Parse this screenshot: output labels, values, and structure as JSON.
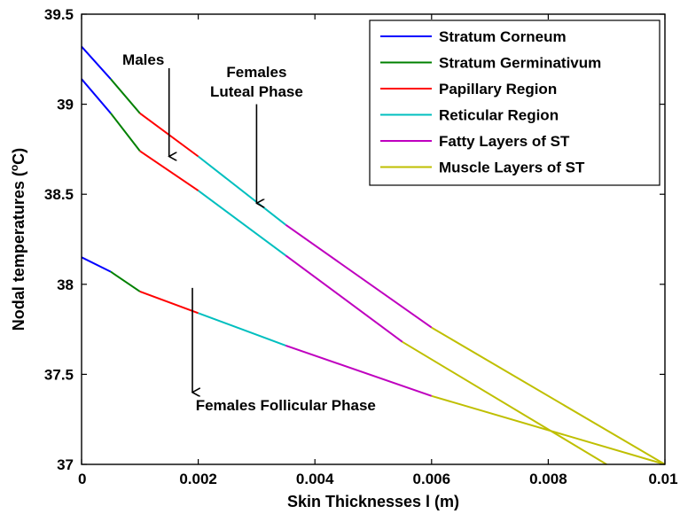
{
  "chart_data": {
    "type": "line",
    "title": "",
    "xlabel": "Skin Thicknesses l (m)",
    "ylabel_prefix": "Nodal temperatures (",
    "ylabel_sup": "o",
    "ylabel_suffix": "C)",
    "xlim": [
      0,
      0.01
    ],
    "ylim": [
      37,
      39.5
    ],
    "xticks": [
      0,
      0.002,
      0.004,
      0.006,
      0.008,
      0.01
    ],
    "xtick_labels": [
      "0",
      "0.002",
      "0.004",
      "0.006",
      "0.008",
      "0.01"
    ],
    "yticks": [
      37,
      37.5,
      38,
      38.5,
      39,
      39.5
    ],
    "ytick_labels": [
      "37",
      "37.5",
      "38",
      "38.5",
      "39",
      "39.5"
    ],
    "grid": false,
    "legend_position": "top-right",
    "layers": [
      {
        "name": "Stratum Corneum",
        "color": "#0000ff"
      },
      {
        "name": "Stratum Germinativum",
        "color": "#008000"
      },
      {
        "name": "Papillary Region",
        "color": "#ff0000"
      },
      {
        "name": "Reticular Region",
        "color": "#00bfbf"
      },
      {
        "name": "Fatty Layers of ST",
        "color": "#bf00bf"
      },
      {
        "name": "Muscle Layers of ST",
        "color": "#bfbf00"
      }
    ],
    "series": [
      {
        "group": "Females Luteal Phase",
        "segments": [
          {
            "layer": 0,
            "x": [
              0,
              0.0005
            ],
            "y": [
              39.32,
              39.14
            ]
          },
          {
            "layer": 1,
            "x": [
              0.0005,
              0.001
            ],
            "y": [
              39.14,
              38.95
            ]
          },
          {
            "layer": 2,
            "x": [
              0.001,
              0.002
            ],
            "y": [
              38.95,
              38.71
            ]
          },
          {
            "layer": 3,
            "x": [
              0.002,
              0.0035
            ],
            "y": [
              38.71,
              38.33
            ]
          },
          {
            "layer": 4,
            "x": [
              0.0035,
              0.006
            ],
            "y": [
              38.33,
              37.76
            ]
          },
          {
            "layer": 5,
            "x": [
              0.006,
              0.01
            ],
            "y": [
              37.76,
              37.0
            ]
          }
        ]
      },
      {
        "group": "Males",
        "segments": [
          {
            "layer": 0,
            "x": [
              0,
              0.0005
            ],
            "y": [
              39.14,
              38.95
            ]
          },
          {
            "layer": 1,
            "x": [
              0.0005,
              0.001
            ],
            "y": [
              38.95,
              38.74
            ]
          },
          {
            "layer": 2,
            "x": [
              0.001,
              0.002
            ],
            "y": [
              38.74,
              38.52
            ]
          },
          {
            "layer": 3,
            "x": [
              0.002,
              0.0035
            ],
            "y": [
              38.52,
              38.16
            ]
          },
          {
            "layer": 4,
            "x": [
              0.0035,
              0.0055
            ],
            "y": [
              38.16,
              37.68
            ]
          },
          {
            "layer": 5,
            "x": [
              0.0055,
              0.009
            ],
            "y": [
              37.68,
              37.0
            ]
          }
        ]
      },
      {
        "group": "Females Follicular Phase",
        "segments": [
          {
            "layer": 0,
            "x": [
              0,
              0.0005
            ],
            "y": [
              38.15,
              38.07
            ]
          },
          {
            "layer": 1,
            "x": [
              0.0005,
              0.001
            ],
            "y": [
              38.07,
              37.96
            ]
          },
          {
            "layer": 2,
            "x": [
              0.001,
              0.002
            ],
            "y": [
              37.96,
              37.84
            ]
          },
          {
            "layer": 3,
            "x": [
              0.002,
              0.0035
            ],
            "y": [
              37.84,
              37.66
            ]
          },
          {
            "layer": 4,
            "x": [
              0.0035,
              0.006
            ],
            "y": [
              37.66,
              37.38
            ]
          },
          {
            "layer": 5,
            "x": [
              0.006,
              0.01
            ],
            "y": [
              37.38,
              37.0
            ]
          }
        ]
      }
    ],
    "annotations": [
      {
        "name": "males",
        "lines": [
          "Males"
        ],
        "text_x": 0.0007,
        "text_y": 39.22,
        "arrow_x": 0.0015,
        "arrow_y_from": 39.2,
        "arrow_y_to": 38.71
      },
      {
        "name": "females-luteal",
        "lines": [
          "Females",
          "Luteal Phase"
        ],
        "text_x": 0.003,
        "text_y": 39.15,
        "arrow_x": 0.003,
        "arrow_y_from": 39.0,
        "arrow_y_to": 38.45
      },
      {
        "name": "females-follicular",
        "lines": [
          "Females Follicular Phase"
        ],
        "text_x": 0.0035,
        "text_y": 37.3,
        "arrow_x": 0.0019,
        "arrow_y_from": 37.98,
        "arrow_y_to": 37.4
      }
    ]
  }
}
